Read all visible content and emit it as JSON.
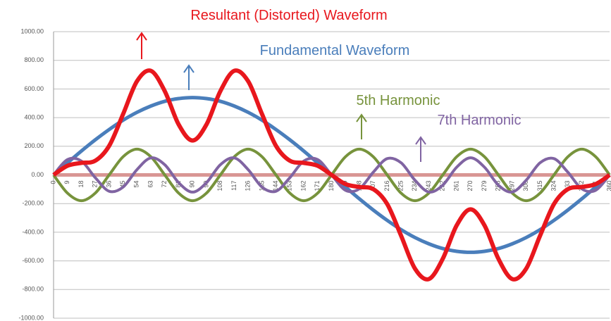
{
  "chart_data": {
    "type": "line",
    "x": [
      0,
      9,
      18,
      27,
      36,
      45,
      54,
      63,
      72,
      81,
      90,
      99,
      108,
      117,
      126,
      135,
      144,
      153,
      162,
      171,
      180,
      189,
      198,
      207,
      216,
      225,
      234,
      243,
      252,
      261,
      270,
      279,
      288,
      297,
      306,
      315,
      324,
      333,
      342,
      351,
      360
    ],
    "xlim": [
      0,
      360
    ],
    "ylim": [
      -1000,
      1000
    ],
    "yticks": [
      {
        "value": 1000,
        "label": "1000.00"
      },
      {
        "value": 800,
        "label": "800.00"
      },
      {
        "value": 600,
        "label": "600.00"
      },
      {
        "value": 400,
        "label": "400.00"
      },
      {
        "value": 200,
        "label": "200.00"
      },
      {
        "value": 0,
        "label": "0.00"
      },
      {
        "value": -200,
        "label": "-200.00"
      },
      {
        "value": -400,
        "label": "-400.00"
      },
      {
        "value": -600,
        "label": "-600.00"
      },
      {
        "value": -800,
        "label": "-800.00"
      },
      {
        "value": -1000,
        "label": "-1000.00"
      }
    ],
    "grid": true,
    "zero_line_color": "#d99694",
    "series": [
      {
        "name": "Fundamental Waveform",
        "color": "#4a7ebb",
        "values": [
          0,
          84,
          167,
          245,
          317,
          382,
          437,
          481,
          514,
          533,
          540,
          533,
          514,
          481,
          437,
          382,
          317,
          245,
          167,
          84,
          0,
          -84,
          -167,
          -245,
          -317,
          -382,
          -437,
          -481,
          -514,
          -533,
          -540,
          -533,
          -514,
          -481,
          -437,
          -382,
          -317,
          -245,
          -167,
          -84,
          0
        ]
      },
      {
        "name": "5th Harmonic",
        "color": "#77933c",
        "values": [
          0,
          -127,
          -180,
          -127,
          0,
          127,
          180,
          127,
          0,
          -127,
          -180,
          -127,
          0,
          127,
          180,
          127,
          0,
          -127,
          -180,
          -127,
          0,
          127,
          180,
          127,
          0,
          -127,
          -180,
          -127,
          0,
          127,
          180,
          127,
          0,
          -127,
          -180,
          -127,
          0,
          127,
          180,
          127,
          0
        ]
      },
      {
        "name": "7th Harmonic",
        "color": "#8064a2",
        "values": [
          0,
          107,
          97,
          -19,
          -114,
          -85,
          37,
          119,
          71,
          -54,
          -120,
          -54,
          71,
          119,
          37,
          -85,
          -114,
          -19,
          97,
          107,
          0,
          -107,
          -97,
          19,
          114,
          85,
          -37,
          -119,
          -71,
          54,
          120,
          54,
          -71,
          -119,
          -37,
          85,
          114,
          19,
          -97,
          -107,
          0
        ]
      },
      {
        "name": "Resultant (Distorted) Waveform",
        "color": "#e8171d",
        "values": [
          0,
          64,
          84,
          99,
          203,
          424,
          654,
          727,
          585,
          352,
          240,
          352,
          585,
          727,
          654,
          424,
          203,
          99,
          84,
          64,
          0,
          -64,
          -84,
          -99,
          -203,
          -424,
          -654,
          -727,
          -585,
          -352,
          -240,
          -352,
          -585,
          -727,
          -654,
          -424,
          -203,
          -99,
          -84,
          -64,
          0
        ]
      }
    ]
  }
}
